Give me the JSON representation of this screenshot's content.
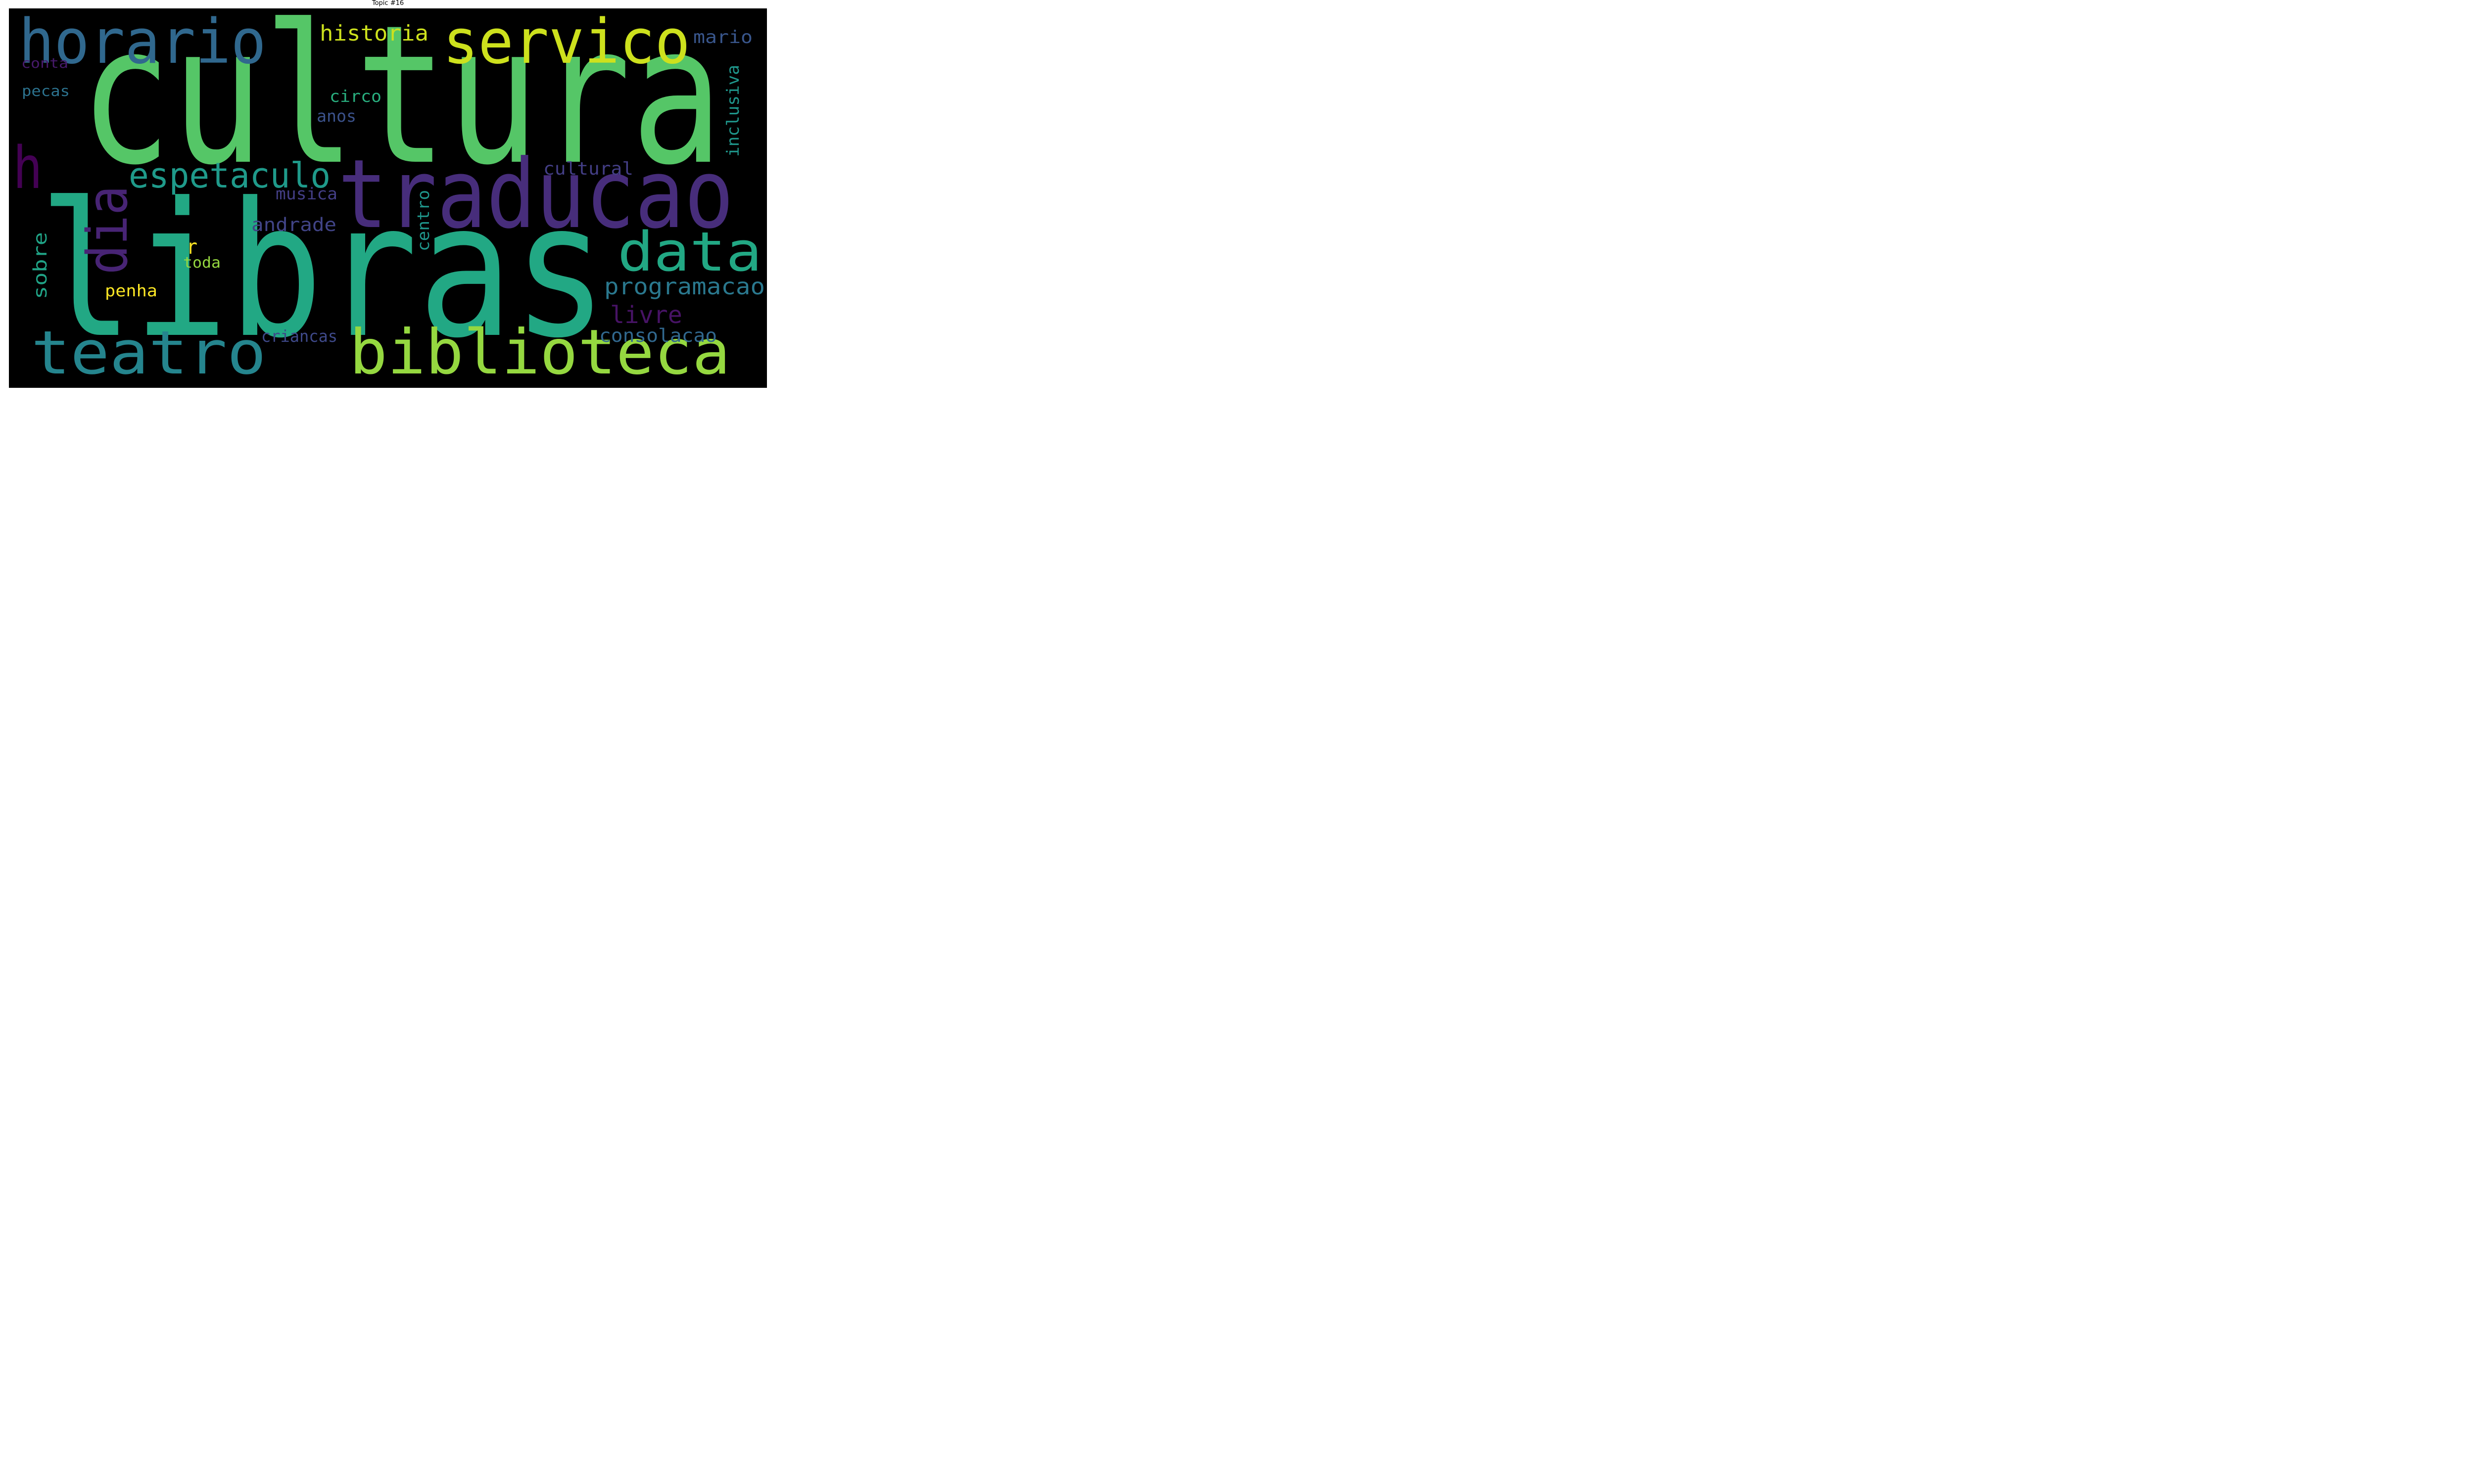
{
  "figure": {
    "title": "Topic #16"
  },
  "wordcloud": {
    "background": "#000000",
    "words": [
      {
        "text": "cultura",
        "color": "#55c667"
      },
      {
        "text": "libras",
        "color": "#22a884"
      },
      {
        "text": "traducao",
        "color": "#472d7b"
      },
      {
        "text": "horario",
        "color": "#30688e"
      },
      {
        "text": "servico",
        "color": "#cde11d"
      },
      {
        "text": "biblioteca",
        "color": "#95d840"
      },
      {
        "text": "teatro",
        "color": "#25858e"
      },
      {
        "text": "data",
        "color": "#22a884"
      },
      {
        "text": "espetaculo",
        "color": "#1f9a8a"
      },
      {
        "text": "dia",
        "color": "#482475"
      },
      {
        "text": "h",
        "color": "#440154"
      },
      {
        "text": "historia",
        "color": "#cde11d"
      },
      {
        "text": "programacao",
        "color": "#2a788e"
      },
      {
        "text": "mario",
        "color": "#39568c"
      },
      {
        "text": "andrade",
        "color": "#414487"
      },
      {
        "text": "consolacao",
        "color": "#31688e"
      },
      {
        "text": "livre",
        "color": "#471365"
      },
      {
        "text": "cultural",
        "color": "#433e85"
      },
      {
        "text": "inclusiva",
        "color": "#1f968b"
      },
      {
        "text": "musica",
        "color": "#433e85"
      },
      {
        "text": "circo",
        "color": "#29af7f"
      },
      {
        "text": "anos",
        "color": "#3b528b"
      },
      {
        "text": "sobre",
        "color": "#20a386"
      },
      {
        "text": "centro",
        "color": "#1f968b"
      },
      {
        "text": "r",
        "color": "#fde725"
      },
      {
        "text": "toda",
        "color": "#95d840"
      },
      {
        "text": "penha",
        "color": "#fde725"
      },
      {
        "text": "criancas",
        "color": "#3e4989"
      },
      {
        "text": "conta",
        "color": "#481a6c"
      },
      {
        "text": "pecas",
        "color": "#2c728e"
      }
    ]
  }
}
